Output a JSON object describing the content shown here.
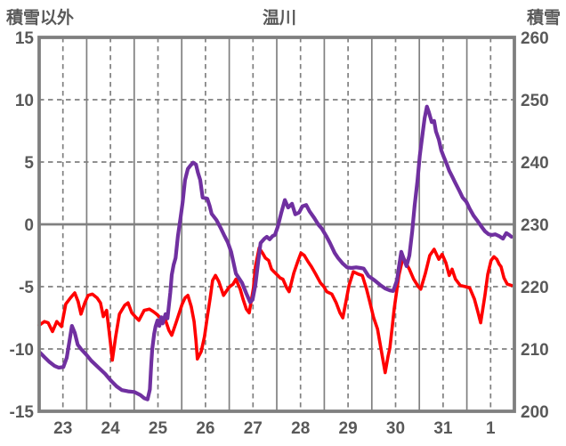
{
  "chart_data": {
    "type": "line",
    "title": "温川",
    "x_axis": {
      "tick_labels": [
        "23",
        "24",
        "25",
        "26",
        "27",
        "28",
        "29",
        "30",
        "31",
        "1"
      ],
      "num_days": 10
    },
    "left_axis": {
      "title": "積雪以外",
      "min": -15,
      "max": 15,
      "ticks": [
        15,
        10,
        5,
        0,
        -5,
        -10,
        -15
      ],
      "dashed_gridline_values": [
        10,
        5,
        -5,
        -10
      ],
      "solid_gridline_values": [
        0
      ]
    },
    "right_axis": {
      "title": "積雪",
      "min": 200,
      "max": 260,
      "ticks": [
        260,
        250,
        240,
        230,
        220,
        210,
        200
      ]
    },
    "legend": "none",
    "colors": {
      "grid": "#808080",
      "border": "#7f7f7f",
      "text": "#595959",
      "red_series": "#ff0000",
      "purple_series": "#7030a0",
      "background": "#ffffff"
    },
    "series": [
      {
        "name": "積雪以外",
        "axis": "left",
        "color": "#ff0000",
        "points": [
          [
            0.0,
            -8.1
          ],
          [
            0.11,
            -7.8
          ],
          [
            0.19,
            -7.9
          ],
          [
            0.28,
            -8.6
          ],
          [
            0.37,
            -7.8
          ],
          [
            0.47,
            -8.2
          ],
          [
            0.56,
            -6.4
          ],
          [
            0.66,
            -5.9
          ],
          [
            0.75,
            -5.5
          ],
          [
            0.82,
            -6.2
          ],
          [
            0.88,
            -7.2
          ],
          [
            0.96,
            -6.3
          ],
          [
            1.03,
            -5.7
          ],
          [
            1.12,
            -5.6
          ],
          [
            1.22,
            -5.9
          ],
          [
            1.29,
            -6.3
          ],
          [
            1.35,
            -7.4
          ],
          [
            1.42,
            -6.9
          ],
          [
            1.5,
            -9.5
          ],
          [
            1.54,
            -10.9
          ],
          [
            1.61,
            -9.0
          ],
          [
            1.69,
            -7.2
          ],
          [
            1.8,
            -6.5
          ],
          [
            1.87,
            -6.3
          ],
          [
            1.95,
            -7.1
          ],
          [
            2.02,
            -7.4
          ],
          [
            2.1,
            -7.7
          ],
          [
            2.21,
            -6.9
          ],
          [
            2.32,
            -6.8
          ],
          [
            2.4,
            -7.0
          ],
          [
            2.47,
            -7.2
          ],
          [
            2.58,
            -7.6
          ],
          [
            2.66,
            -7.7
          ],
          [
            2.73,
            -8.5
          ],
          [
            2.79,
            -8.9
          ],
          [
            2.88,
            -7.9
          ],
          [
            2.94,
            -7.2
          ],
          [
            3.01,
            -6.4
          ],
          [
            3.07,
            -5.9
          ],
          [
            3.13,
            -5.7
          ],
          [
            3.2,
            -6.6
          ],
          [
            3.26,
            -7.8
          ],
          [
            3.3,
            -9.3
          ],
          [
            3.33,
            -10.8
          ],
          [
            3.41,
            -10.2
          ],
          [
            3.48,
            -9.0
          ],
          [
            3.54,
            -7.4
          ],
          [
            3.6,
            -5.9
          ],
          [
            3.65,
            -4.5
          ],
          [
            3.71,
            -4.1
          ],
          [
            3.78,
            -4.6
          ],
          [
            3.88,
            -5.7
          ],
          [
            3.95,
            -5.3
          ],
          [
            4.01,
            -5.0
          ],
          [
            4.08,
            -4.8
          ],
          [
            4.14,
            -4.4
          ],
          [
            4.23,
            -5.2
          ],
          [
            4.29,
            -6.0
          ],
          [
            4.36,
            -6.8
          ],
          [
            4.42,
            -7.1
          ],
          [
            4.51,
            -5.1
          ],
          [
            4.55,
            -3.4
          ],
          [
            4.63,
            -1.9
          ],
          [
            4.7,
            -2.3
          ],
          [
            4.76,
            -2.7
          ],
          [
            4.83,
            -2.9
          ],
          [
            4.89,
            -3.6
          ],
          [
            4.94,
            -3.8
          ],
          [
            5.02,
            -4.1
          ],
          [
            5.07,
            -4.3
          ],
          [
            5.13,
            -4.4
          ],
          [
            5.21,
            -5.1
          ],
          [
            5.26,
            -5.4
          ],
          [
            5.36,
            -3.9
          ],
          [
            5.45,
            -2.9
          ],
          [
            5.51,
            -2.3
          ],
          [
            5.58,
            -2.5
          ],
          [
            5.66,
            -3.0
          ],
          [
            5.73,
            -3.4
          ],
          [
            5.82,
            -4.0
          ],
          [
            5.92,
            -4.7
          ],
          [
            5.99,
            -5.0
          ],
          [
            6.05,
            -5.4
          ],
          [
            6.16,
            -5.6
          ],
          [
            6.25,
            -6.3
          ],
          [
            6.33,
            -7.1
          ],
          [
            6.39,
            -7.5
          ],
          [
            6.46,
            -6.1
          ],
          [
            6.52,
            -4.9
          ],
          [
            6.61,
            -3.8
          ],
          [
            6.72,
            -4.0
          ],
          [
            6.8,
            -4.1
          ],
          [
            6.89,
            -5.2
          ],
          [
            6.95,
            -6.1
          ],
          [
            7.04,
            -7.5
          ],
          [
            7.12,
            -8.4
          ],
          [
            7.19,
            -9.9
          ],
          [
            7.25,
            -11.2
          ],
          [
            7.28,
            -11.9
          ],
          [
            7.34,
            -10.6
          ],
          [
            7.38,
            -9.9
          ],
          [
            7.43,
            -8.2
          ],
          [
            7.47,
            -6.8
          ],
          [
            7.57,
            -4.1
          ],
          [
            7.66,
            -2.6
          ],
          [
            7.73,
            -3.2
          ],
          [
            7.79,
            -3.6
          ],
          [
            7.88,
            -4.4
          ],
          [
            7.98,
            -5.0
          ],
          [
            8.03,
            -5.2
          ],
          [
            8.13,
            -3.9
          ],
          [
            8.22,
            -2.5
          ],
          [
            8.31,
            -2.0
          ],
          [
            8.41,
            -2.8
          ],
          [
            8.48,
            -2.4
          ],
          [
            8.56,
            -3.1
          ],
          [
            8.63,
            -4.1
          ],
          [
            8.69,
            -3.6
          ],
          [
            8.76,
            -4.4
          ],
          [
            8.86,
            -4.9
          ],
          [
            8.97,
            -5.0
          ],
          [
            9.06,
            -5.1
          ],
          [
            9.16,
            -6.0
          ],
          [
            9.23,
            -7.0
          ],
          [
            9.29,
            -7.9
          ],
          [
            9.38,
            -5.7
          ],
          [
            9.44,
            -4.0
          ],
          [
            9.51,
            -2.9
          ],
          [
            9.57,
            -2.6
          ],
          [
            9.63,
            -2.8
          ],
          [
            9.68,
            -3.2
          ],
          [
            9.72,
            -3.4
          ],
          [
            9.78,
            -4.3
          ],
          [
            9.85,
            -4.8
          ],
          [
            9.94,
            -4.9
          ]
        ]
      },
      {
        "name": "積雪",
        "axis": "right",
        "color": "#7030a0",
        "points": [
          [
            0.02,
            209.4
          ],
          [
            0.11,
            208.7
          ],
          [
            0.22,
            207.9
          ],
          [
            0.32,
            207.3
          ],
          [
            0.41,
            207.0
          ],
          [
            0.51,
            207.1
          ],
          [
            0.58,
            208.6
          ],
          [
            0.64,
            211.4
          ],
          [
            0.69,
            213.7
          ],
          [
            0.75,
            212.6
          ],
          [
            0.81,
            210.7
          ],
          [
            0.88,
            210.0
          ],
          [
            0.99,
            209.1
          ],
          [
            1.1,
            208.1
          ],
          [
            1.25,
            207.0
          ],
          [
            1.39,
            206.0
          ],
          [
            1.5,
            205.0
          ],
          [
            1.63,
            204.0
          ],
          [
            1.74,
            203.4
          ],
          [
            1.87,
            203.2
          ],
          [
            2.0,
            203.1
          ],
          [
            2.13,
            202.6
          ],
          [
            2.21,
            202.1
          ],
          [
            2.28,
            201.9
          ],
          [
            2.33,
            203.5
          ],
          [
            2.36,
            207.7
          ],
          [
            2.38,
            210.0
          ],
          [
            2.42,
            212.4
          ],
          [
            2.45,
            213.6
          ],
          [
            2.49,
            214.6
          ],
          [
            2.53,
            213.7
          ],
          [
            2.57,
            215.1
          ],
          [
            2.6,
            214.1
          ],
          [
            2.66,
            215.6
          ],
          [
            2.7,
            214.9
          ],
          [
            2.73,
            217.0
          ],
          [
            2.76,
            219.1
          ],
          [
            2.79,
            221.9
          ],
          [
            2.83,
            223.5
          ],
          [
            2.87,
            224.6
          ],
          [
            2.92,
            228.1
          ],
          [
            2.98,
            231.3
          ],
          [
            3.02,
            233.6
          ],
          [
            3.07,
            237.1
          ],
          [
            3.13,
            238.9
          ],
          [
            3.18,
            239.4
          ],
          [
            3.24,
            239.9
          ],
          [
            3.3,
            239.6
          ],
          [
            3.34,
            238.3
          ],
          [
            3.39,
            237.1
          ],
          [
            3.44,
            234.3
          ],
          [
            3.5,
            234.2
          ],
          [
            3.54,
            234.1
          ],
          [
            3.59,
            232.9
          ],
          [
            3.63,
            231.7
          ],
          [
            3.73,
            230.7
          ],
          [
            3.82,
            229.4
          ],
          [
            3.89,
            228.3
          ],
          [
            3.97,
            227.1
          ],
          [
            4.04,
            225.6
          ],
          [
            4.14,
            222.1
          ],
          [
            4.27,
            220.6
          ],
          [
            4.36,
            218.9
          ],
          [
            4.44,
            217.5
          ],
          [
            4.49,
            217.9
          ],
          [
            4.55,
            220.3
          ],
          [
            4.61,
            224.1
          ],
          [
            4.66,
            227.0
          ],
          [
            4.74,
            227.7
          ],
          [
            4.79,
            228.0
          ],
          [
            4.85,
            227.6
          ],
          [
            4.91,
            228.1
          ],
          [
            4.96,
            228.3
          ],
          [
            5.02,
            229.6
          ],
          [
            5.09,
            231.7
          ],
          [
            5.17,
            233.9
          ],
          [
            5.24,
            232.7
          ],
          [
            5.32,
            233.3
          ],
          [
            5.39,
            231.6
          ],
          [
            5.47,
            231.9
          ],
          [
            5.54,
            232.9
          ],
          [
            5.62,
            233.1
          ],
          [
            5.69,
            232.1
          ],
          [
            5.79,
            231.0
          ],
          [
            5.88,
            229.9
          ],
          [
            5.95,
            229.3
          ],
          [
            6.05,
            228.0
          ],
          [
            6.12,
            227.0
          ],
          [
            6.22,
            225.4
          ],
          [
            6.29,
            224.6
          ],
          [
            6.39,
            223.7
          ],
          [
            6.48,
            223.1
          ],
          [
            6.57,
            223.0
          ],
          [
            6.67,
            223.1
          ],
          [
            6.76,
            223.0
          ],
          [
            6.83,
            222.9
          ],
          [
            6.93,
            221.7
          ],
          [
            7.06,
            221.0
          ],
          [
            7.17,
            220.3
          ],
          [
            7.28,
            219.7
          ],
          [
            7.38,
            219.4
          ],
          [
            7.45,
            219.3
          ],
          [
            7.53,
            221.0
          ],
          [
            7.57,
            223.1
          ],
          [
            7.62,
            225.6
          ],
          [
            7.68,
            224.3
          ],
          [
            7.73,
            223.3
          ],
          [
            7.79,
            225.0
          ],
          [
            7.85,
            228.9
          ],
          [
            7.9,
            233.0
          ],
          [
            7.96,
            237.0
          ],
          [
            8.01,
            241.0
          ],
          [
            8.07,
            244.6
          ],
          [
            8.11,
            247.0
          ],
          [
            8.16,
            248.9
          ],
          [
            8.2,
            248.0
          ],
          [
            8.26,
            246.4
          ],
          [
            8.31,
            246.6
          ],
          [
            8.35,
            244.9
          ],
          [
            8.41,
            243.6
          ],
          [
            8.46,
            241.9
          ],
          [
            8.52,
            240.7
          ],
          [
            8.58,
            239.6
          ],
          [
            8.63,
            238.6
          ],
          [
            8.69,
            237.7
          ],
          [
            8.76,
            236.6
          ],
          [
            8.84,
            235.4
          ],
          [
            8.91,
            234.3
          ],
          [
            8.99,
            233.6
          ],
          [
            9.06,
            232.5
          ],
          [
            9.14,
            231.4
          ],
          [
            9.21,
            230.7
          ],
          [
            9.31,
            229.6
          ],
          [
            9.38,
            228.9
          ],
          [
            9.46,
            228.4
          ],
          [
            9.53,
            228.3
          ],
          [
            9.6,
            228.4
          ],
          [
            9.68,
            228.1
          ],
          [
            9.76,
            227.7
          ],
          [
            9.83,
            228.6
          ],
          [
            9.89,
            228.3
          ],
          [
            9.94,
            228.0
          ]
        ]
      }
    ]
  }
}
